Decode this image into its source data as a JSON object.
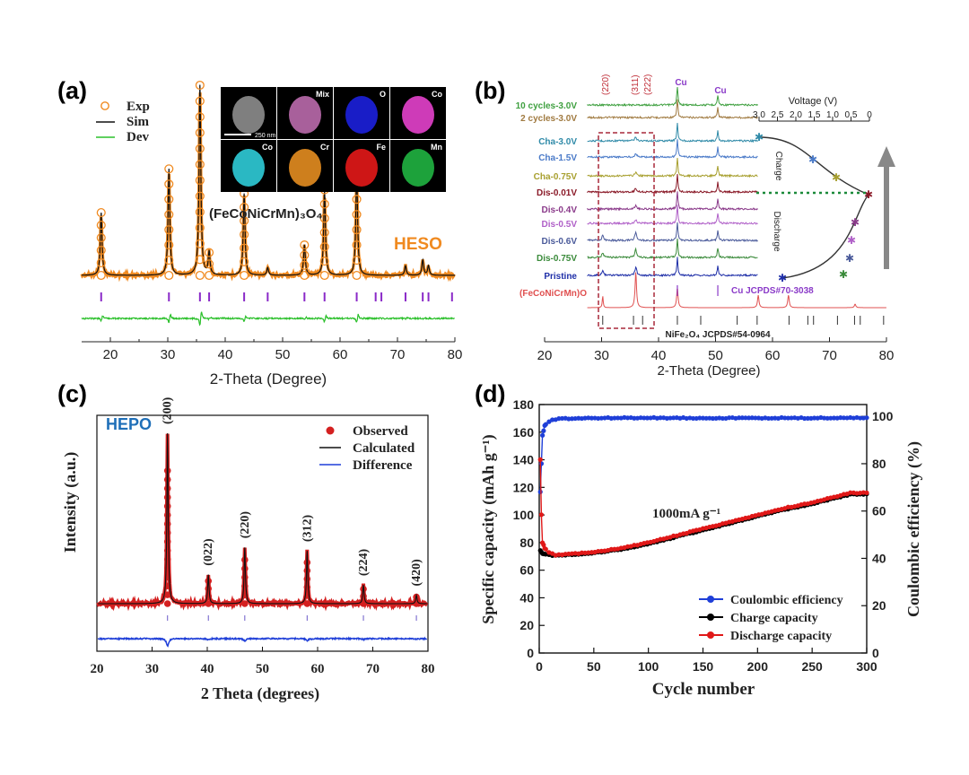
{
  "panel_labels": [
    "(a)",
    "(b)",
    "(c)",
    "(d)"
  ],
  "chart_data": [
    {
      "type": "line",
      "panel": "(a)",
      "xlabel": "2-Theta (Degree)",
      "ylabel": "",
      "xlim": [
        15,
        80
      ],
      "xticks": [
        20,
        30,
        40,
        50,
        60,
        70,
        80
      ],
      "legend": [
        "Exp",
        "Sim",
        "Dev"
      ],
      "legend_position": "top-left",
      "compound": "(FeCoNiCrMn)₃O₄",
      "tag": "HESO",
      "peaks": [
        {
          "x": 18.4,
          "h": 0.33
        },
        {
          "x": 30.2,
          "h": 0.56
        },
        {
          "x": 35.6,
          "h": 1.0
        },
        {
          "x": 37.2,
          "h": 0.12
        },
        {
          "x": 43.3,
          "h": 0.43
        },
        {
          "x": 47.4,
          "h": 0.04
        },
        {
          "x": 53.8,
          "h": 0.16
        },
        {
          "x": 57.3,
          "h": 0.45
        },
        {
          "x": 62.9,
          "h": 0.56
        },
        {
          "x": 71.4,
          "h": 0.05
        },
        {
          "x": 74.4,
          "h": 0.08
        },
        {
          "x": 75.4,
          "h": 0.05
        }
      ],
      "ticks": [
        18.4,
        30.2,
        35.6,
        37.2,
        43.3,
        47.4,
        53.8,
        57.3,
        62.9,
        66.2,
        67.2,
        71.4,
        74.4,
        75.4,
        79.5
      ],
      "inset": {
        "scale_bar": "250 nm",
        "maps": [
          {
            "label": "",
            "color": "#8a8a8a"
          },
          {
            "label": "Mix",
            "color": "#b668a8"
          },
          {
            "label": "O",
            "color": "#1b1fd8"
          },
          {
            "label": "Co",
            "color": "#e040c8"
          },
          {
            "label": "Co",
            "color": "#2ec8d4"
          },
          {
            "label": "Cr",
            "color": "#e08a20"
          },
          {
            "label": "Fe",
            "color": "#e01818"
          },
          {
            "label": "Mn",
            "color": "#20b040"
          }
        ]
      }
    },
    {
      "type": "line",
      "panel": "(b)",
      "xlabel": "2-Theta (Degree)",
      "xlim": [
        20,
        80
      ],
      "xticks": [
        20,
        30,
        40,
        50,
        60,
        70,
        80
      ],
      "plane_labels": [
        "(220)",
        "(311)",
        "(222)"
      ],
      "cu_label": "Cu",
      "series": [
        {
          "name": "10 cycles-3.0V",
          "color": "#3fa040"
        },
        {
          "name": "2 cycles-3.0V",
          "color": "#a07a40"
        },
        {
          "name": "Cha-3.0V",
          "color": "#2f8aa8"
        },
        {
          "name": "Cha-1.5V",
          "color": "#4a7ac8"
        },
        {
          "name": "Cha-0.75V",
          "color": "#a8a030"
        },
        {
          "name": "Dis-0.01V",
          "color": "#8a1a28"
        },
        {
          "name": "Dis-0.4V",
          "color": "#8a3a8a"
        },
        {
          "name": "Dis-0.5V",
          "color": "#b060c8"
        },
        {
          "name": "Dis-0.6V",
          "color": "#4a5a9a"
        },
        {
          "name": "Dis-0.75V",
          "color": "#3a8a3a"
        },
        {
          "name": "Pristine",
          "color": "#1f2fa8"
        }
      ],
      "reference_lines": [
        {
          "label": "(FeCoNiCrMn)O",
          "color": "#e05050"
        },
        {
          "label": "Cu JCPDS#70-3038",
          "color": "#8a3ac8"
        },
        {
          "label": "NiFe₂O₄ JCPDS#54-0964",
          "color": "#202020"
        }
      ],
      "voltage_axis": {
        "label": "Voltage (V)",
        "ticks": [
          "3.0",
          "2.5",
          "2.0",
          "1.5",
          "1.0",
          "0.5",
          "0"
        ]
      },
      "charge_label": "Charge",
      "discharge_label": "Discharge"
    },
    {
      "type": "line",
      "panel": "(c)",
      "xlabel": "2 Theta (degrees)",
      "ylabel": "Intensity (a.u.)",
      "xlim": [
        20,
        80
      ],
      "xticks": [
        20,
        30,
        40,
        50,
        60,
        70,
        80
      ],
      "tag": "HEPO",
      "legend": [
        "Observed",
        "Calculated",
        "Difference"
      ],
      "legend_position": "top-right",
      "peaks": [
        {
          "x": 32.8,
          "h": 1.0,
          "label": "(200)"
        },
        {
          "x": 40.2,
          "h": 0.17,
          "label": "(022)"
        },
        {
          "x": 46.8,
          "h": 0.33,
          "label": "(220)"
        },
        {
          "x": 58.1,
          "h": 0.31,
          "label": "(312)"
        },
        {
          "x": 68.3,
          "h": 0.11,
          "label": "(224)"
        },
        {
          "x": 77.9,
          "h": 0.05,
          "label": "(420)"
        }
      ]
    },
    {
      "type": "line",
      "panel": "(d)",
      "xlabel": "Cycle number",
      "ylabel": "Specific capacity (mAh g⁻¹)",
      "y2label": "Coulombic efficiency (%)",
      "xlim": [
        0,
        300
      ],
      "ylim": [
        0,
        180
      ],
      "y2lim": [
        0,
        105
      ],
      "xticks": [
        0,
        50,
        100,
        150,
        200,
        250,
        300
      ],
      "yticks": [
        0,
        20,
        40,
        60,
        80,
        100,
        120,
        140,
        160,
        180
      ],
      "y2ticks": [
        0,
        20,
        40,
        60,
        80,
        100
      ],
      "annotation": "1000mA g⁻¹",
      "legend_position": "bottom-right",
      "series": [
        {
          "name": "Coulombic efficiency",
          "color": "#1f3fd8",
          "axis": "right",
          "x": [
            1,
            2,
            3,
            5,
            8,
            12,
            20,
            50,
            100,
            150,
            200,
            250,
            300
          ],
          "y": [
            68,
            80,
            92,
            96,
            97.5,
            98.5,
            99,
            99.3,
            99.4,
            99.3,
            99.3,
            99.3,
            99.4
          ]
        },
        {
          "name": "Charge capacity",
          "color": "#000000",
          "axis": "left",
          "x": [
            1,
            3,
            8,
            15,
            25,
            50,
            75,
            100,
            125,
            150,
            175,
            200,
            225,
            250,
            275,
            285,
            300
          ],
          "y": [
            74,
            72,
            71,
            70.5,
            71,
            72.5,
            75,
            79,
            84,
            89,
            94,
            99,
            104,
            108,
            113,
            115,
            115
          ]
        },
        {
          "name": "Discharge capacity",
          "color": "#e01818",
          "axis": "left",
          "x": [
            1,
            2,
            3,
            5,
            8,
            15,
            25,
            50,
            75,
            100,
            125,
            150,
            175,
            200,
            225,
            250,
            275,
            285,
            300
          ],
          "y": [
            140,
            100,
            80,
            76,
            73,
            71,
            71.5,
            73,
            76,
            80,
            85,
            90,
            95,
            100,
            105,
            109,
            114,
            116,
            116
          ]
        }
      ]
    }
  ]
}
